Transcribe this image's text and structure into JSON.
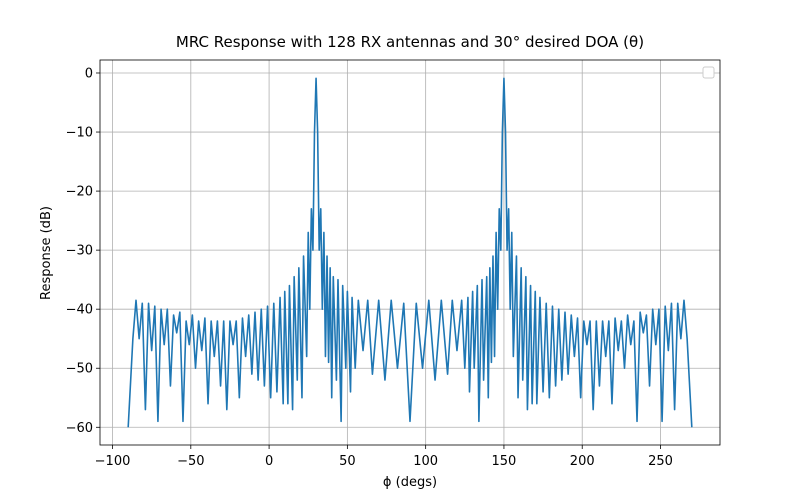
{
  "chart_data": {
    "type": "line",
    "title": "MRC Response with 128 RX antennas and 30° desired DOA (θ)",
    "x_label": "ϕ (degs)",
    "y_label": "Response (dB)",
    "color": "#1f77b4",
    "grid": true,
    "x": [
      -90,
      -87,
      -85,
      -83,
      -81,
      -79,
      -77,
      -75,
      -73,
      -71,
      -69,
      -67,
      -65,
      -63,
      -61,
      -59,
      -57,
      -55,
      -53,
      -51,
      -49,
      -47,
      -45,
      -43,
      -41,
      -39,
      -37,
      -35,
      -33,
      -31,
      -29,
      -27,
      -25,
      -23,
      -21,
      -19,
      -17,
      -15,
      -13,
      -11,
      -9,
      -7,
      -5,
      -3,
      -1,
      1,
      3,
      5,
      7,
      9,
      10,
      12,
      13,
      15,
      16,
      18,
      19,
      21,
      22,
      24,
      25,
      26,
      27,
      28,
      29,
      30,
      31,
      32,
      33,
      34,
      35,
      36,
      37,
      38,
      39,
      40,
      41,
      43,
      44,
      46,
      47,
      49,
      50,
      52,
      53,
      55,
      57,
      60,
      63,
      66,
      70,
      74,
      78,
      82,
      86,
      90,
      94,
      98,
      102,
      106,
      110,
      114,
      117,
      120,
      123,
      125,
      127,
      128,
      130,
      131,
      133,
      134,
      136,
      137,
      139,
      140,
      141,
      142,
      143,
      144,
      145,
      146,
      147,
      148,
      149,
      150,
      151,
      152,
      153,
      154,
      155,
      156,
      158,
      159,
      161,
      162,
      164,
      165,
      167,
      168,
      170,
      171,
      173,
      175,
      177,
      179,
      181,
      183,
      185,
      187,
      189,
      191,
      193,
      195,
      197,
      199,
      201,
      203,
      205,
      207,
      209,
      211,
      213,
      215,
      217,
      219,
      221,
      223,
      225,
      227,
      229,
      231,
      233,
      235,
      237,
      239,
      241,
      243,
      245,
      247,
      249,
      251,
      253,
      255,
      257,
      259,
      261,
      263,
      265,
      267,
      270
    ],
    "values": [
      -60,
      -45,
      -38.5,
      -45,
      -39,
      -57,
      -39,
      -47,
      -39.5,
      -59,
      -40,
      -46,
      -40,
      -53,
      -41,
      -44,
      -40.5,
      -59,
      -42,
      -46,
      -41,
      -50,
      -42,
      -47,
      -41.5,
      -56,
      -42,
      -48,
      -42,
      -53,
      -42,
      -57,
      -42,
      -46,
      -42,
      -55,
      -41.5,
      -48,
      -41,
      -51,
      -40.5,
      -52,
      -40,
      -53,
      -39.5,
      -55,
      -39,
      -54,
      -38,
      -56,
      -37,
      -56,
      -36,
      -57,
      -34.5,
      -52,
      -33,
      -55,
      -31,
      -48,
      -27,
      -40,
      -23,
      -30,
      -10,
      -0.9,
      -10,
      -30,
      -23,
      -40,
      -27,
      -48,
      -31,
      -49,
      -33,
      -55,
      -34.5,
      -52,
      -35,
      -59,
      -36,
      -50,
      -37,
      -54,
      -38,
      -50,
      -38.5,
      -47,
      -38.5,
      -51,
      -38.5,
      -52,
      -38.5,
      -50,
      -39,
      -59,
      -39,
      -50,
      -38.5,
      -52,
      -38.5,
      -51,
      -38.5,
      -47,
      -38.5,
      -50,
      -38,
      -54,
      -37,
      -50,
      -36,
      -59,
      -35,
      -52,
      -34.5,
      -55,
      -33,
      -49,
      -31,
      -48,
      -27,
      -40,
      -23,
      -30,
      -10,
      -0.9,
      -10,
      -30,
      -23,
      -40,
      -27,
      -48,
      -31,
      -55,
      -33,
      -52,
      -34.5,
      -57,
      -36,
      -56,
      -37,
      -56,
      -38,
      -54,
      -39,
      -55,
      -39.5,
      -53,
      -40,
      -52,
      -40.5,
      -51,
      -41,
      -48,
      -41.5,
      -55,
      -42,
      -46,
      -42,
      -57,
      -42,
      -53,
      -42,
      -48,
      -42,
      -56,
      -41.5,
      -47,
      -42,
      -50,
      -41,
      -46,
      -42,
      -59,
      -40.5,
      -44,
      -41,
      -53,
      -40,
      -46,
      -40,
      -59,
      -39.5,
      -47,
      -39,
      -57,
      -39,
      -45,
      -38.5,
      -45,
      -60
    ],
    "xlim": [
      -108,
      288
    ],
    "ylim": [
      -63,
      2.2
    ],
    "xticks": [
      {
        "value": -100,
        "label": "−100"
      },
      {
        "value": -50,
        "label": "−50"
      },
      0,
      50,
      100,
      150,
      200,
      250
    ],
    "yticks": [
      0,
      {
        "value": -10,
        "label": "−10"
      },
      {
        "value": -20,
        "label": "−20"
      },
      {
        "value": -30,
        "label": "−30"
      },
      {
        "value": -40,
        "label": "−40"
      },
      {
        "value": -50,
        "label": "−50"
      },
      {
        "value": -60,
        "label": "−60"
      }
    ]
  }
}
